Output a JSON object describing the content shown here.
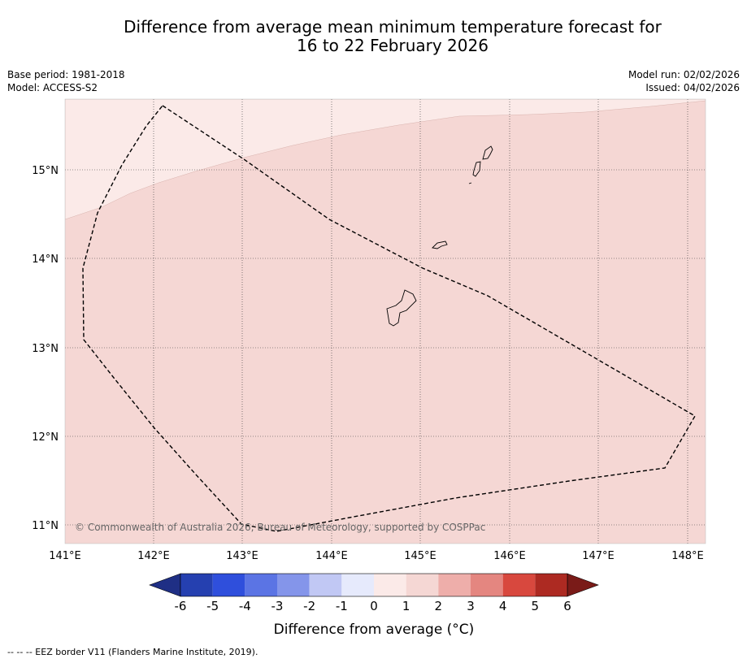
{
  "title": {
    "line1": "Difference from average mean minimum temperature forecast for",
    "line2": "16 to 22 February 2026"
  },
  "meta_left": {
    "base_period": "Base period: 1981-2018",
    "model": "Model: ACCESS-S2"
  },
  "meta_right": {
    "model_run": "Model run: 02/02/2026",
    "issued": "Issued: 04/02/2026"
  },
  "map": {
    "lon_labels": [
      "141°E",
      "142°E",
      "143°E",
      "144°E",
      "145°E",
      "146°E",
      "147°E",
      "148°E"
    ],
    "lat_labels": [
      "15°N",
      "14°N",
      "13°N",
      "12°N",
      "11°N"
    ],
    "copyright": "© Commonwealth of Australia 2026, Bureau of Meteorology, supported by COSPPac",
    "anomaly_zones": [
      {
        "range": "0 to 1",
        "color": "#fbeae8"
      },
      {
        "range": "1 to 2",
        "color": "#f5d7d4"
      }
    ]
  },
  "colorbar": {
    "labels": [
      "-6",
      "-5",
      "-4",
      "-3",
      "-2",
      "-1",
      "0",
      "1",
      "2",
      "3",
      "4",
      "5",
      "6"
    ],
    "colors": [
      "#2540b0",
      "#2f4fdc",
      "#5b74e4",
      "#8495ea",
      "#c1c8f4",
      "#e6eafc",
      "#fbeae8",
      "#f5d7d4",
      "#eeaeaa",
      "#e48680",
      "#d8483e",
      "#ad2a22"
    ],
    "under_color": "#1f2f85",
    "over_color": "#7a1b18",
    "label": "Difference from average ($^\\circ$C)",
    "label_display": "Difference from average (°C)"
  },
  "footer": "--  --  -- EEZ border V11 (Flanders Marine Institute, 2019)."
}
